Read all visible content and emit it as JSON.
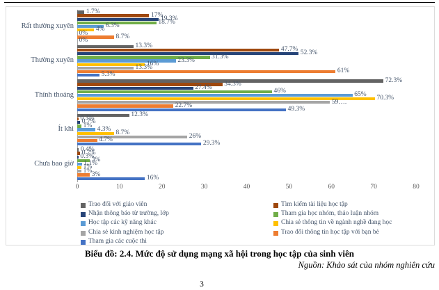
{
  "page": {
    "caption": "Biểu đồ: 2.4. Mức độ sử dụng mạng xã hội trong học tập của sinh viên",
    "source": "Nguồn: Khảo sát của nhóm nghiên cứu",
    "page_number": "3"
  },
  "chart_data": {
    "type": "bar",
    "orientation": "horizontal",
    "title": "",
    "xlabel": "",
    "ylabel": "",
    "xlim": [
      0,
      80
    ],
    "xticks": [
      0,
      10,
      20,
      30,
      40,
      50,
      60,
      70,
      80
    ],
    "grid": false,
    "legend_position": "bottom",
    "legend_columns": 2,
    "text_color": "#44546A",
    "tick_color": "#595959",
    "categories": [
      "Rất thường xuyên",
      "Thường xuyên",
      "Thỉnh thoảng",
      "Ít khi",
      "Chưa bao giờ"
    ],
    "series": [
      {
        "name": "Trao đổi với giáo viên",
        "color": "#636363",
        "values": [
          1.7,
          13.3,
          72.3,
          12.3,
          0.4
        ],
        "labels": [
          "1.7%",
          "13.3%",
          "72.3%",
          "12.3%",
          "0.4%"
        ]
      },
      {
        "name": "Tìm kiếm tài liệu học tập",
        "color": "#9E480E",
        "values": [
          17,
          47.7,
          34.3,
          0.3,
          0.7
        ],
        "labels": [
          "17%",
          "47.7%",
          "34.3%",
          "0.3%",
          "0.7%"
        ]
      },
      {
        "name": "Nhận thông báo từ trường, lớp",
        "color": "#264478",
        "values": [
          19.3,
          52.3,
          27.4,
          0.7,
          0.3
        ],
        "labels": [
          "19.3%",
          "52.3%",
          "27.4%",
          "0.7%",
          "0.3%"
        ]
      },
      {
        "name": "Tham gia học nhóm, thảo luận nhóm",
        "color": "#70AD47",
        "values": [
          18.7,
          31.3,
          46,
          1,
          3
        ],
        "labels": [
          "18.7%",
          "31.3%",
          "46%",
          "1%",
          "3%"
        ]
      },
      {
        "name": "Học tập các kỹ năng khác",
        "color": "#5B9BD5",
        "values": [
          6.3,
          23.3,
          65,
          4.3,
          1.1
        ],
        "labels": [
          "6.3%",
          "23.3%",
          "65%",
          "4.3%",
          "1.1%"
        ]
      },
      {
        "name": "Chia sẻ thông tin  về ngành nghề đang học",
        "color": "#FFC000",
        "values": [
          4,
          16,
          70.3,
          8.7,
          1
        ],
        "labels": [
          "4%",
          "16%",
          "70.3%",
          "8.7%",
          "1%"
        ]
      },
      {
        "name": "Chia sẻ kinh nghiệm học tập",
        "color": "#A5A5A5",
        "values": [
          0,
          13.3,
          59.7,
          26,
          1
        ],
        "labels": [
          "0%",
          "13.3%",
          "59….",
          "26%",
          "1%"
        ]
      },
      {
        "name": "Trao đổi thông tin học tập với bạn bè",
        "color": "#ED7D31",
        "values": [
          8.7,
          61,
          22.7,
          4.7,
          3
        ],
        "labels": [
          "8.7%",
          "61%",
          "22.7%",
          "4.7%",
          "3%"
        ]
      },
      {
        "name": "Tham gia các cuộc thi",
        "color": "#4472C4",
        "values": [
          0,
          5.3,
          49.3,
          29.3,
          16
        ],
        "labels": [
          "0%",
          "5.3%",
          "49.3%",
          "29.3%",
          "16%"
        ]
      }
    ],
    "legend_column_series_indexes": [
      [
        0,
        2,
        4,
        6,
        8
      ],
      [
        1,
        3,
        5,
        7
      ]
    ]
  }
}
